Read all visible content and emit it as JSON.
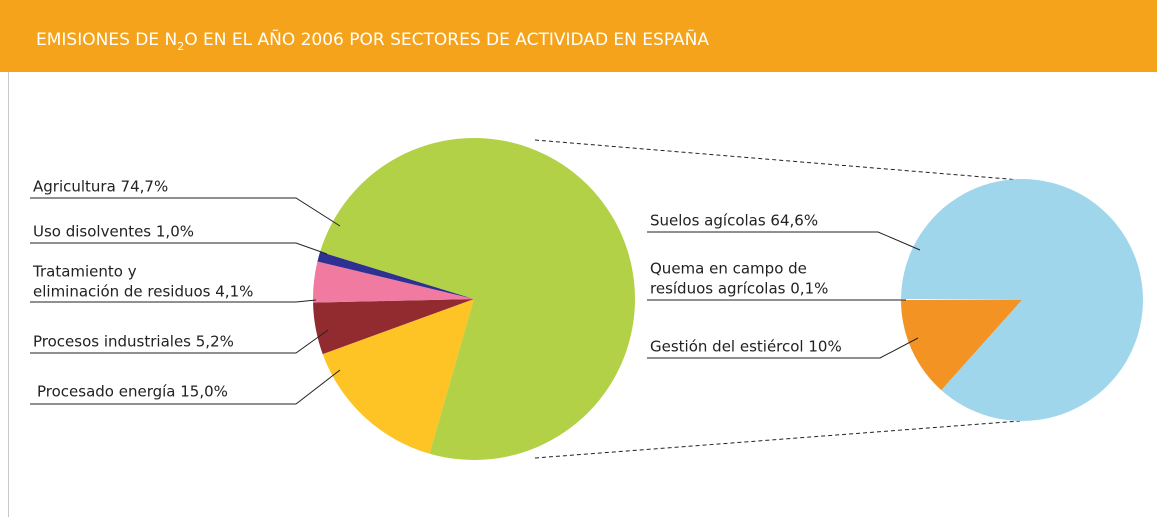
{
  "chart_data": {
    "type": "pie-of-pie",
    "title": [
      "EMISIONES DE N",
      "2",
      "O EN EL AÑO 2006 POR SECTORES DE ACTIVIDAD EN ESPAÑA"
    ],
    "labels": [
      [
        "Agricultura 74,7%"
      ],
      [
        "Uso disolventes 1,0%"
      ],
      [
        "Tratamiento y",
        "eliminación de residuos 4,1%"
      ],
      [
        "Procesos industriales 5,2%"
      ],
      [
        "Procesado energía 15,0%"
      ]
    ],
    "values": [
      74.7,
      1.0,
      4.1,
      5.2,
      15.0
    ],
    "colors": [
      "#b2d147",
      "#2e3192",
      "#f07aa0",
      "#922b2f",
      "#fec325"
    ],
    "secondary": {
      "labels": [
        [
          "Suelos agícolas 64,6%"
        ],
        [
          "Quema en campo de",
          "resíduos agrícolas 0,1%"
        ],
        [
          "Gestión del estiércol 10%"
        ]
      ],
      "values": [
        64.6,
        0.1,
        10
      ],
      "colors": [
        "#a0d6ec",
        "#ffffff",
        "#f39323"
      ]
    }
  }
}
